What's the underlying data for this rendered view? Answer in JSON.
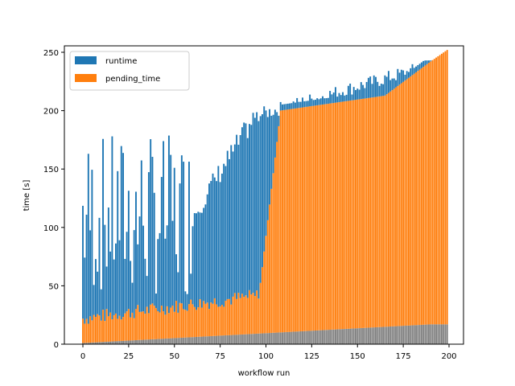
{
  "chart_data": {
    "type": "bar",
    "stacked": true,
    "title": "",
    "xlabel": "workflow run",
    "ylabel": "time [s]",
    "xlim": [
      -10,
      210
    ],
    "ylim": [
      0,
      250
    ],
    "xticks": [
      0,
      25,
      50,
      75,
      100,
      125,
      150,
      175,
      200
    ],
    "yticks": [
      0,
      50,
      100,
      150,
      200,
      250
    ],
    "legend": {
      "position": "upper left",
      "entries": [
        "runtime",
        "pending_time"
      ]
    },
    "colors": {
      "runtime": "#1f77b4",
      "pending_time": "#ff7f0e",
      "base": "#808080"
    },
    "description": "200 runs; gray base ~1-17s increasing, pending ~15-30s until run ~95, then rising steeply to ~190 by run 108 and to ~235 by run 199; top of runtime bars (total) from ~20-190 scattered early to ~195 around 100 and ~240 at end.",
    "series": [
      {
        "name": "base",
        "values": "generated"
      },
      {
        "name": "pending_time",
        "values": "generated"
      },
      {
        "name": "runtime",
        "values": "generated"
      }
    ]
  },
  "axes": {
    "xlabel": "workflow run",
    "ylabel": "time [s]"
  },
  "legend": {
    "items": [
      {
        "label": "runtime",
        "color": "#1f77b4"
      },
      {
        "label": "pending_time",
        "color": "#ff7f0e"
      }
    ]
  }
}
